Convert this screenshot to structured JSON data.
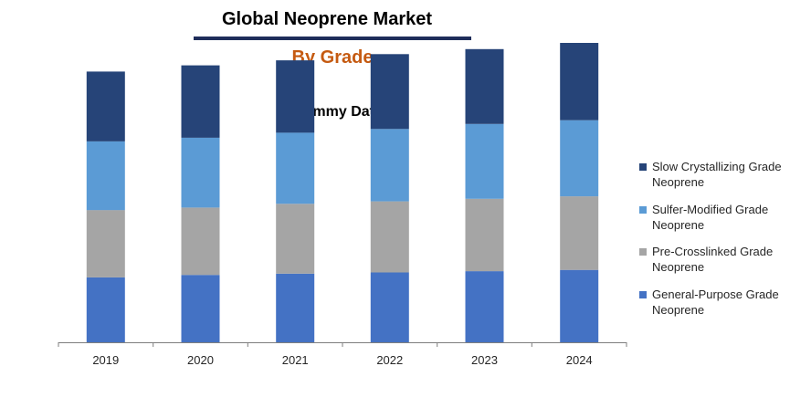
{
  "header": {
    "title": "Global Neoprene Market",
    "subtitle": "By Grade"
  },
  "chart_data": {
    "type": "stacked-bar",
    "title": "Dummy Data",
    "categories": [
      "2019",
      "2020",
      "2021",
      "2022",
      "2023",
      "2024"
    ],
    "series": [
      {
        "name": "General-Purpose Grade Neoprene",
        "color": "#4472c4",
        "values": [
          52,
          54,
          55,
          56,
          57,
          58
        ]
      },
      {
        "name": "Pre-Crosslinked Grade Neoprene",
        "color": "#a5a5a5",
        "values": [
          54,
          54,
          56,
          57,
          58,
          59
        ]
      },
      {
        "name": "Sulfer-Modified Grade Neoprene",
        "color": "#5b9bd5",
        "values": [
          55,
          56,
          57,
          58,
          60,
          61
        ]
      },
      {
        "name": "Slow Crystallizing Grade Neoprene",
        "color": "#264478",
        "values": [
          56,
          58,
          58,
          60,
          60,
          62
        ]
      }
    ],
    "xlabel": "",
    "ylabel": "",
    "ylim": [
      0,
      240
    ],
    "grid": false,
    "legend_position": "right"
  }
}
